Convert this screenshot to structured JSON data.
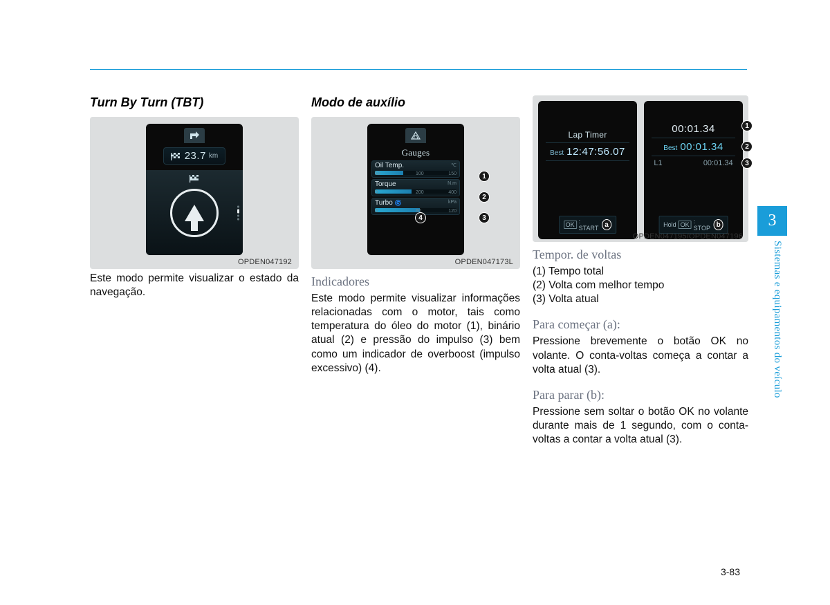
{
  "page": {
    "tab_number": "3",
    "side_label": "Sistemas e equipamentos do veículo",
    "page_number": "3-83"
  },
  "col1": {
    "title": "Turn By Turn (TBT)",
    "img_caption": "OPDEN047192",
    "distance_value": "23.7",
    "distance_unit": "km",
    "body": "Este modo permite visualizar o estado da navegação."
  },
  "col2": {
    "title": "Modo de auxílio",
    "img_caption": "OPDEN047173L",
    "gauges_title": "Gauges",
    "rows": {
      "oil": {
        "label": "Oil Temp.",
        "unit": "℃",
        "t1": "50",
        "t2": "100",
        "t3": "150",
        "fill_pct": "35%"
      },
      "torque": {
        "label": "Torque",
        "unit": "N.m",
        "t1": "0",
        "t2": "200",
        "t3": "400",
        "fill_pct": "45%"
      },
      "turbo": {
        "label": "Turbo",
        "unit": "kPa",
        "t1": "0",
        "t2": "60",
        "t3": "120",
        "fill_pct": "55%"
      }
    },
    "marker4": "4",
    "subheading": "Indicadores",
    "body": "Este modo permite visualizar informações relacionadas com o motor, tais como temperatura do óleo do motor (1), binário atual (2) e pressão do impulso (3) bem como um indicador de overboost (impulso excessivo) (4)."
  },
  "col3": {
    "pair_caption": "OPDEN047195/OPDEN047196",
    "left": {
      "title": "Lap Timer",
      "best_label": "Best",
      "best_time": "12:47:56.07",
      "ok_prefix": "OK",
      "ok_label": ": START",
      "ok_letter": "a"
    },
    "right": {
      "top_time": "00:01.34",
      "best_label": "Best",
      "best_time": "00:01.34",
      "l1_label": "L1",
      "l1_time": "00:01.34",
      "ok_prefix": "Hold",
      "ok_mid": "OK",
      "ok_label": ": STOP",
      "ok_letter": "b"
    },
    "sub1": "Tempor. de voltas",
    "list1": [
      "(1) Tempo total",
      "(2) Volta com melhor tempo",
      "(3) Volta atual"
    ],
    "sub2": "Para começar (a):",
    "body2": "Pressione brevemente o botão OK no volante. O conta-voltas começa a contar a volta atual (3).",
    "sub3": "Para parar (b):",
    "body3": "Pressione sem soltar o botão OK no volante durante mais de 1 segundo, com o conta-voltas a contar a volta atual (3)."
  },
  "markers": {
    "m1": "1",
    "m2": "2",
    "m3": "3"
  }
}
